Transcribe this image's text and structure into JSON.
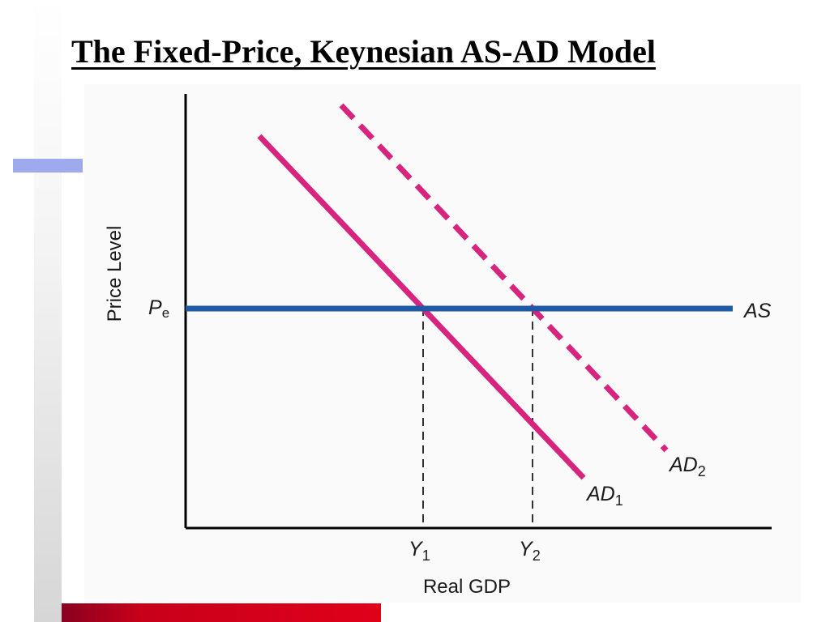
{
  "slide": {
    "title": "The Fixed-Price, Keynesian AS-AD Model"
  },
  "chart_data": {
    "type": "line",
    "xlabel": "Real GDP",
    "ylabel": "Price Level",
    "ytick_label": {
      "main": "P",
      "sub": "e"
    },
    "xtick_labels": [
      {
        "main": "Y",
        "sub": "1"
      },
      {
        "main": "Y",
        "sub": "2"
      }
    ],
    "series": [
      {
        "name": "AS",
        "main": "AS",
        "sub": "",
        "style": "solid",
        "color": "#1f5aa6"
      },
      {
        "name": "AD1",
        "main": "AD",
        "sub": "1",
        "style": "solid",
        "color": "#d6247f"
      },
      {
        "name": "AD2",
        "main": "AD",
        "sub": "2",
        "style": "dashed",
        "color": "#d6247f"
      }
    ],
    "colors": {
      "axis": "#000000",
      "guide": "#000000",
      "as": "#1f5aa6",
      "ad": "#d6247f"
    }
  }
}
